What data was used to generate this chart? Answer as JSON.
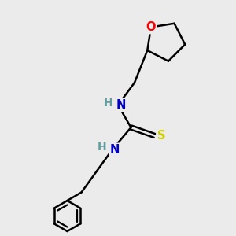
{
  "bg_color": "#ebebeb",
  "atom_colors": {
    "O": "#ff0000",
    "N": "#0000cc",
    "S": "#cccc00",
    "H_teal": "#5f9ea0",
    "C": "#000000"
  },
  "bond_color": "#000000",
  "bond_width": 1.8,
  "font_size": 10.5
}
